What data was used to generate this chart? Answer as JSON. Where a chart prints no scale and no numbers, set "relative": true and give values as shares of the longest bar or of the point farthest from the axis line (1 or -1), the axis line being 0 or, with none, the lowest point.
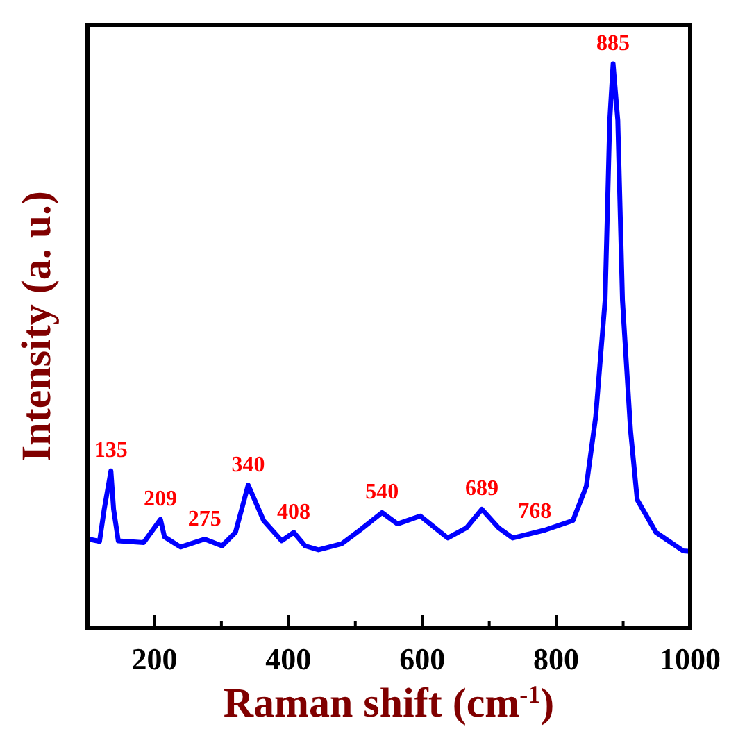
{
  "chart_data": {
    "type": "line",
    "relative": true,
    "xlabel": "Raman shift (cm$^{-1}$)",
    "ylabel": "Intensity (a. u.)",
    "xlim": [
      100,
      1000
    ],
    "xticks": [
      {
        "value": 200,
        "label": "200"
      },
      {
        "value": 300,
        "label": null
      },
      {
        "value": 400,
        "label": "400"
      },
      {
        "value": 500,
        "label": null
      },
      {
        "value": 600,
        "label": "600"
      },
      {
        "value": 700,
        "label": null
      },
      {
        "value": 800,
        "label": "800"
      },
      {
        "value": 900,
        "label": null
      },
      {
        "value": 1000,
        "label": "1000"
      }
    ],
    "tick_labels": "x",
    "marker": "none",
    "line_style": "solid",
    "series": [
      {
        "color": "#0000ff",
        "x": [
          102,
          118,
          125,
          135,
          139,
          146,
          184,
          209,
          215,
          239,
          275,
          301,
          321,
          340,
          363,
          390,
          408,
          425,
          445,
          480,
          507,
          540,
          563,
          597,
          638,
          666,
          689,
          714,
          735,
          783,
          825,
          845,
          859,
          873,
          880,
          885,
          892,
          899,
          911,
          921,
          949,
          990,
          1000
        ],
        "values": [
          0.157,
          0.153,
          0.21,
          0.278,
          0.21,
          0.154,
          0.151,
          0.192,
          0.161,
          0.143,
          0.157,
          0.145,
          0.169,
          0.253,
          0.19,
          0.154,
          0.169,
          0.145,
          0.138,
          0.149,
          0.173,
          0.204,
          0.184,
          0.198,
          0.159,
          0.177,
          0.21,
          0.177,
          0.159,
          0.173,
          0.19,
          0.251,
          0.374,
          0.58,
          0.9,
          1,
          0.9,
          0.58,
          0.35,
          0.227,
          0.169,
          0.136,
          0.135
        ]
      }
    ],
    "annotations": [
      {
        "text": "135",
        "x": 135,
        "y": 0.278
      },
      {
        "text": "209",
        "x": 209,
        "y": 0.192
      },
      {
        "text": "275",
        "x": 275,
        "y": 0.157
      },
      {
        "text": "340",
        "x": 340,
        "y": 0.253
      },
      {
        "text": "408",
        "x": 408,
        "y": 0.169
      },
      {
        "text": "540",
        "x": 540,
        "y": 0.204
      },
      {
        "text": "689",
        "x": 689,
        "y": 0.21
      },
      {
        "text": "768",
        "x": 768,
        "y": 0.17
      },
      {
        "text": "885",
        "x": 885,
        "y": 1
      }
    ]
  }
}
